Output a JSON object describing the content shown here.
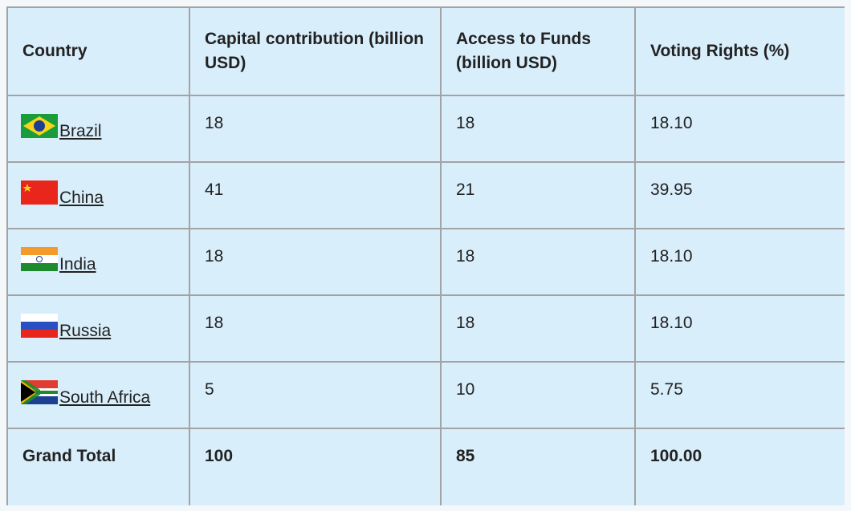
{
  "table": {
    "header": [
      "Country",
      "Capital contribution (billion USD)",
      "Access to Funds (billion USD)",
      "Voting Rights (%)"
    ],
    "rows": [
      [
        "Brazil",
        "18",
        "18",
        "18.10"
      ],
      [
        "China",
        "41",
        "21",
        "39.95"
      ],
      [
        "India",
        "18",
        "18",
        "18.10"
      ],
      [
        "Russia",
        "18",
        "18",
        "18.10"
      ],
      [
        "South Africa",
        "5",
        "10",
        "5.75"
      ]
    ],
    "total": [
      "Grand Total",
      "100",
      "85",
      "100.00"
    ]
  }
}
